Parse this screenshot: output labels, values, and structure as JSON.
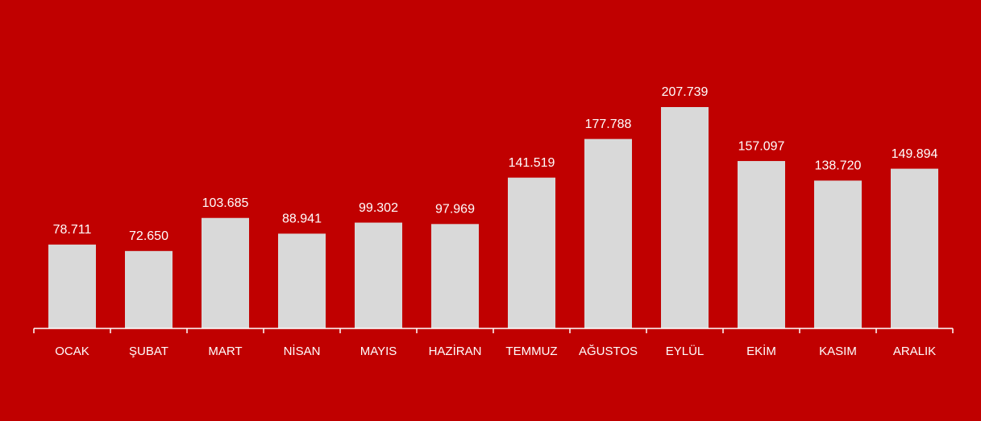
{
  "chart_data": {
    "type": "bar",
    "categories": [
      "OCAK",
      "ŞUBAT",
      "MART",
      "NİSAN",
      "MAYIS",
      "HAZİRAN",
      "TEMMUZ",
      "AĞUSTOS",
      "EYLÜL",
      "EKİM",
      "KASIM",
      "ARALIK"
    ],
    "values": [
      78711,
      72650,
      103685,
      88941,
      99302,
      97969,
      141519,
      177788,
      207739,
      157097,
      138720,
      149894
    ],
    "value_labels": [
      "78.711",
      "72.650",
      "103.685",
      "88.941",
      "99.302",
      "97.969",
      "141.519",
      "177.788",
      "207.739",
      "157.097",
      "138.720",
      "149.894"
    ],
    "color": "#d9d9d9"
  }
}
